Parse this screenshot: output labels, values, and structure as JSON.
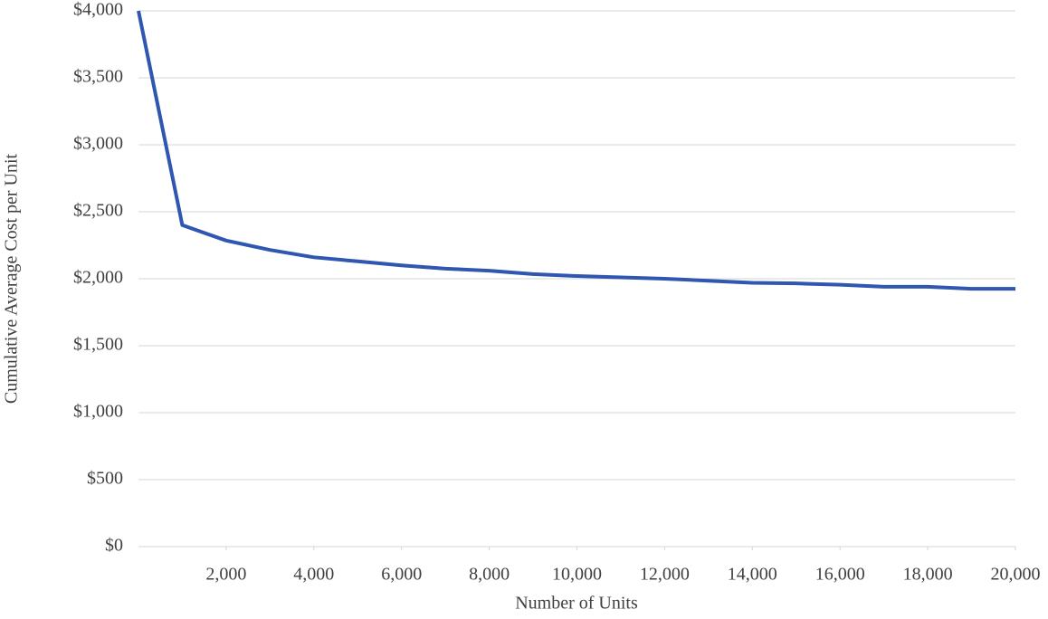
{
  "chart_data": {
    "type": "line",
    "x_label": "Number of Units",
    "y_label": "Cumulative Average Cost per Unit",
    "x": [
      0,
      1000,
      2000,
      3000,
      4000,
      5000,
      6000,
      7000,
      8000,
      9000,
      10000,
      11000,
      12000,
      13000,
      14000,
      15000,
      16000,
      17000,
      18000,
      19000,
      20000
    ],
    "values": [
      4000,
      2400,
      2285,
      2215,
      2160,
      2130,
      2100,
      2075,
      2060,
      2035,
      2020,
      2010,
      2000,
      1985,
      1970,
      1965,
      1955,
      1940,
      1940,
      1925,
      1925
    ],
    "color": "#2f56b0",
    "xlim": [
      0,
      20000
    ],
    "xticks": [
      {
        "value": 2000,
        "label": "2,000"
      },
      {
        "value": 4000,
        "label": "4,000"
      },
      {
        "value": 6000,
        "label": "6,000"
      },
      {
        "value": 8000,
        "label": "8,000"
      },
      {
        "value": 10000,
        "label": "10,000"
      },
      {
        "value": 12000,
        "label": "12,000"
      },
      {
        "value": 14000,
        "label": "14,000"
      },
      {
        "value": 16000,
        "label": "16,000"
      },
      {
        "value": 18000,
        "label": "18,000"
      },
      {
        "value": 20000,
        "label": "20,000"
      }
    ],
    "ylim": [
      0,
      4000
    ],
    "yticks": [
      {
        "value": 0,
        "label": "$0"
      },
      {
        "value": 500,
        "label": "$500"
      },
      {
        "value": 1000,
        "label": "$1,000"
      },
      {
        "value": 1500,
        "label": "$1,500"
      },
      {
        "value": 2000,
        "label": "$2,000"
      },
      {
        "value": 2500,
        "label": "$2,500"
      },
      {
        "value": 3000,
        "label": "$3,000"
      },
      {
        "value": 3500,
        "label": "$3,500"
      },
      {
        "value": 4000,
        "label": "$4,000"
      }
    ],
    "grid": true
  }
}
